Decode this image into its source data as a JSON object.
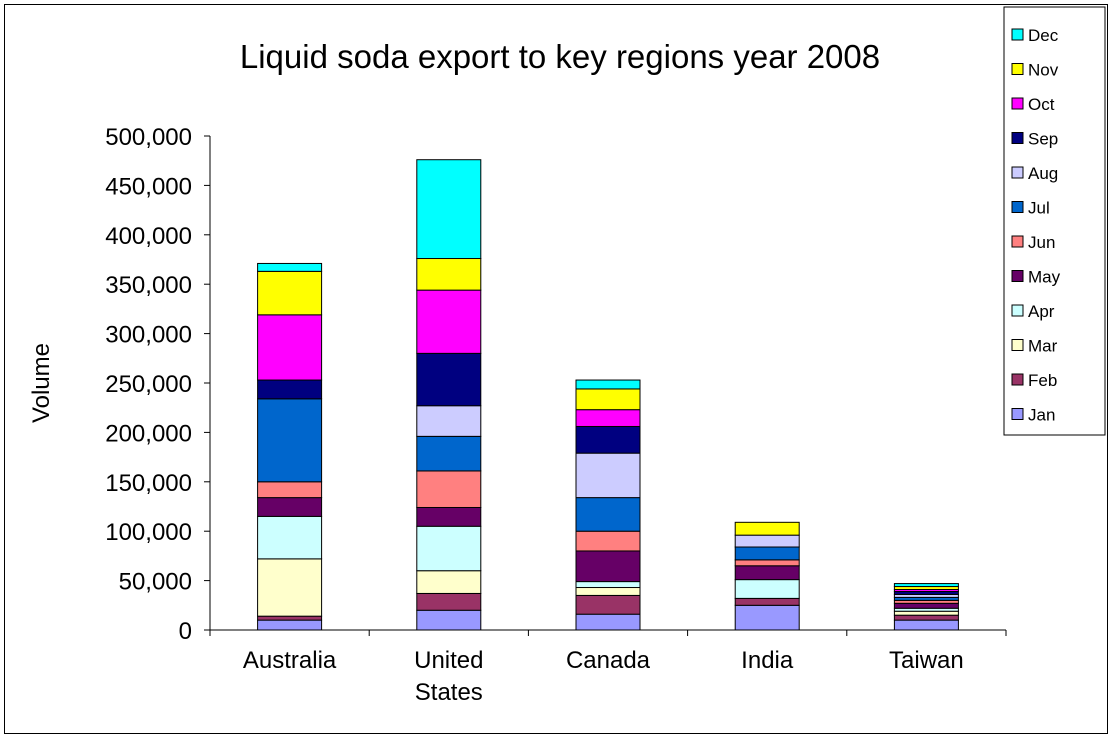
{
  "chart_data": {
    "type": "bar",
    "stacked": true,
    "title": "Liquid soda export to key regions year 2008",
    "xlabel": "",
    "ylabel": "Volume",
    "ylim": [
      0,
      500000
    ],
    "y_ticks": [
      "0",
      "50,000",
      "100,000",
      "150,000",
      "200,000",
      "250,000",
      "300,000",
      "350,000",
      "400,000",
      "450,000",
      "500,000"
    ],
    "categories": [
      [
        "Australia"
      ],
      [
        "United",
        "States"
      ],
      [
        "Canada"
      ],
      [
        "India"
      ],
      [
        "Taiwan"
      ]
    ],
    "grid": false,
    "legend_position": "top-right",
    "series": [
      {
        "name": "Jan",
        "color": "#9999ff",
        "values": [
          10000,
          20000,
          16000,
          25000,
          10000
        ]
      },
      {
        "name": "Feb",
        "color": "#993366",
        "values": [
          4000,
          17000,
          19000,
          7000,
          5000
        ]
      },
      {
        "name": "Mar",
        "color": "#ffffcc",
        "values": [
          58000,
          23000,
          8000,
          0,
          4000
        ]
      },
      {
        "name": "Apr",
        "color": "#ccffff",
        "values": [
          43000,
          45000,
          6000,
          19000,
          3000
        ]
      },
      {
        "name": "May",
        "color": "#660066",
        "values": [
          19000,
          19000,
          31000,
          14000,
          5000
        ]
      },
      {
        "name": "Jun",
        "color": "#ff8080",
        "values": [
          16000,
          37000,
          20000,
          6000,
          3000
        ]
      },
      {
        "name": "Jul",
        "color": "#0066cc",
        "values": [
          84000,
          35000,
          34000,
          13000,
          3000
        ]
      },
      {
        "name": "Aug",
        "color": "#ccccff",
        "values": [
          0,
          31000,
          45000,
          12000,
          3000
        ]
      },
      {
        "name": "Sep",
        "color": "#000080",
        "values": [
          19000,
          53000,
          27000,
          0,
          3000
        ]
      },
      {
        "name": "Oct",
        "color": "#ff00ff",
        "values": [
          66000,
          64000,
          17000,
          0,
          2000
        ]
      },
      {
        "name": "Nov",
        "color": "#ffff00",
        "values": [
          44000,
          32000,
          21000,
          13000,
          3000
        ]
      },
      {
        "name": "Dec",
        "color": "#00ffff",
        "values": [
          8000,
          100000,
          9000,
          0,
          3000
        ]
      }
    ]
  }
}
